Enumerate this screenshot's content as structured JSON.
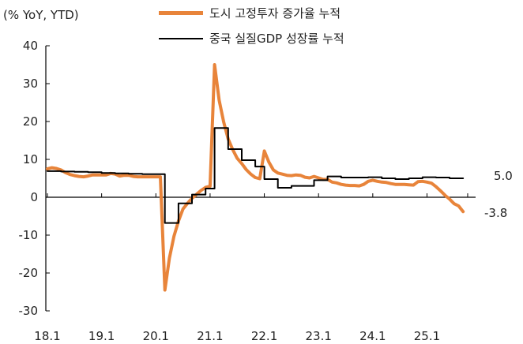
{
  "chart_data": {
    "type": "line",
    "unit_label": "(% YoY, YTD)",
    "ylim": [
      -30,
      40
    ],
    "yticks": [
      40,
      30,
      20,
      10,
      0,
      -10,
      -20,
      -30
    ],
    "ytick_labels": [
      "40",
      "30",
      "20",
      "10",
      "0",
      "-10",
      "-20",
      "-30"
    ],
    "xticks": [
      "18.1",
      "19.1",
      "20.1",
      "21.1",
      "22.1",
      "23.1",
      "24.1",
      "25.1"
    ],
    "x_start": "2018-01",
    "colors": {
      "fai": "#E8843A",
      "gdp": "#000000"
    },
    "series": [
      {
        "name": "도시 고정투자 증가율 누적",
        "key": "fai",
        "values": [
          7.5,
          7.8,
          7.6,
          7.2,
          6.5,
          6.0,
          5.7,
          5.5,
          5.4,
          5.6,
          5.9,
          5.9,
          5.9,
          5.9,
          6.3,
          6.1,
          5.6,
          5.8,
          5.8,
          5.5,
          5.4,
          5.4,
          5.4,
          5.4,
          5.4,
          5.4,
          -24.5,
          -16.1,
          -10.3,
          -6.3,
          -3.1,
          -1.6,
          -0.3,
          0.8,
          1.8,
          2.6,
          2.9,
          35.0,
          25.6,
          19.9,
          15.4,
          12.6,
          10.3,
          8.9,
          7.3,
          6.1,
          5.2,
          4.9,
          12.2,
          9.3,
          7.2,
          6.4,
          6.1,
          5.8,
          5.7,
          5.9,
          5.8,
          5.3,
          5.1,
          5.5,
          5.1,
          4.7,
          4.7,
          4.0,
          3.8,
          3.4,
          3.2,
          3.1,
          3.1,
          3.0,
          3.4,
          4.2,
          4.5,
          4.2,
          4.0,
          3.9,
          3.6,
          3.4,
          3.4,
          3.4,
          3.3,
          3.2,
          4.1,
          4.2,
          4.0,
          3.7,
          2.8,
          1.7,
          0.5,
          -0.5,
          -1.7,
          -2.3,
          -3.8
        ],
        "end_label": "-3.8"
      },
      {
        "name": "중국 실질GDP 성장률 누적",
        "key": "gdp",
        "values": [
          6.9,
          6.9,
          6.9,
          6.8,
          6.8,
          6.8,
          6.7,
          6.7,
          6.7,
          6.6,
          6.6,
          6.6,
          6.4,
          6.4,
          6.4,
          6.3,
          6.3,
          6.3,
          6.2,
          6.2,
          6.2,
          6.1,
          6.1,
          6.1,
          6.1,
          6.1,
          -6.8,
          -6.8,
          -6.8,
          -1.6,
          -1.6,
          -1.6,
          0.7,
          0.7,
          0.7,
          2.3,
          2.3,
          18.3,
          18.3,
          18.3,
          12.7,
          12.7,
          12.7,
          9.8,
          9.8,
          9.8,
          8.1,
          8.1,
          4.8,
          4.8,
          4.8,
          2.5,
          2.5,
          2.5,
          3.0,
          3.0,
          3.0,
          3.0,
          3.0,
          4.5,
          4.5,
          4.5,
          5.5,
          5.5,
          5.5,
          5.2,
          5.2,
          5.2,
          5.2,
          5.2,
          5.2,
          5.3,
          5.3,
          5.3,
          5.0,
          5.0,
          5.0,
          4.8,
          4.8,
          4.8,
          5.0,
          5.0,
          5.0,
          5.3,
          5.3,
          5.3,
          5.2,
          5.2,
          5.2,
          5.0,
          5.0,
          5.0,
          5.0
        ],
        "end_label": "5.0"
      }
    ]
  }
}
